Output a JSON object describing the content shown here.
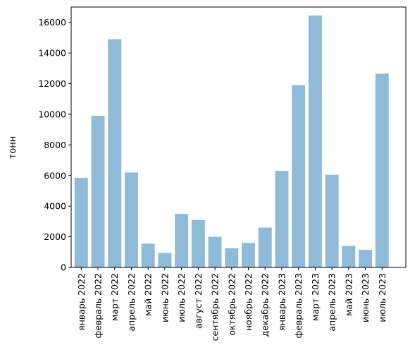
{
  "chart_data": {
    "type": "bar",
    "title": "",
    "xlabel": "",
    "ylabel": "тонн",
    "ylim": [
      0,
      17000
    ],
    "yticks": [
      0,
      2000,
      4000,
      6000,
      8000,
      10000,
      12000,
      14000,
      16000
    ],
    "grid": false,
    "bar_color": "#8fbbd9",
    "categories": [
      "январь 2022",
      "февраль 2022",
      "март 2022",
      "апрель 2022",
      "май 2022",
      "июнь 2022",
      "июль 2022",
      "август 2022",
      "сентябрь 2022",
      "октябрь 2022",
      "ноябрь 2022",
      "декабрь 2022",
      "январь 2023",
      "февраль 2023",
      "март 2023",
      "апрель 2023",
      "май 2023",
      "июнь 2023",
      "июль 2023"
    ],
    "values": [
      5850,
      9900,
      14900,
      6200,
      1550,
      950,
      3500,
      3100,
      2000,
      1250,
      1600,
      2600,
      6300,
      11900,
      16450,
      6050,
      1400,
      1150,
      12650
    ]
  }
}
